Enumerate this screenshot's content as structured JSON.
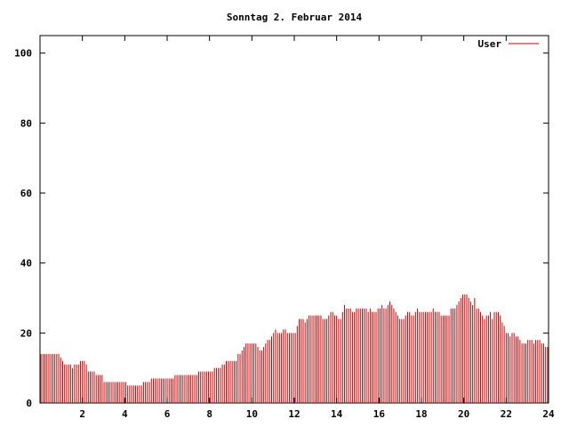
{
  "chart_data": {
    "type": "bar",
    "title": "Sonntag 2. Februar 2014",
    "xlabel": "",
    "ylabel": "",
    "xlim": [
      0,
      24
    ],
    "ylim": [
      0,
      105
    ],
    "xticks": [
      "2",
      "4",
      "6",
      "8",
      "10",
      "12",
      "14",
      "16",
      "18",
      "20",
      "22",
      "24"
    ],
    "yticks": [
      "0",
      "20",
      "40",
      "60",
      "80",
      "100"
    ],
    "grid": false,
    "legend_position": "top-right",
    "series": [
      {
        "name": "User",
        "color": "#cc0000",
        "interval_hours": 0.0833,
        "values": [
          14,
          14,
          14,
          14,
          14,
          14,
          14,
          14,
          14,
          14,
          13,
          12,
          11,
          11,
          11,
          11,
          10,
          11,
          11,
          11,
          12,
          12,
          12,
          11,
          9,
          9,
          9,
          9,
          8,
          8,
          8,
          8,
          6,
          6,
          6,
          6,
          6,
          6,
          6,
          6,
          6,
          6,
          6,
          6,
          5,
          5,
          5,
          5,
          5,
          5,
          5,
          5,
          6,
          6,
          6,
          6,
          7,
          7,
          7,
          7,
          7,
          7,
          7,
          7,
          7,
          7,
          7,
          7,
          8,
          8,
          8,
          8,
          8,
          8,
          8,
          8,
          8,
          8,
          8,
          8,
          9,
          9,
          9,
          9,
          9,
          9,
          9,
          9,
          10,
          10,
          10,
          10,
          11,
          11,
          12,
          12,
          12,
          12,
          12,
          12,
          14,
          14,
          15,
          16,
          17,
          17,
          17,
          17,
          17,
          17,
          16,
          15,
          15,
          16,
          17,
          18,
          18,
          19,
          20,
          21,
          20,
          20,
          20,
          21,
          21,
          20,
          20,
          20,
          20,
          20,
          22,
          24,
          24,
          24,
          23,
          24,
          25,
          25,
          25,
          25,
          25,
          25,
          25,
          24,
          24,
          24,
          25,
          26,
          26,
          25,
          25,
          24,
          24,
          26,
          28,
          27,
          27,
          27,
          26,
          26,
          27,
          27,
          27,
          27,
          27,
          27,
          26,
          27,
          26,
          26,
          26,
          27,
          27,
          28,
          27,
          27,
          28,
          29,
          28,
          27,
          26,
          25,
          24,
          24,
          24,
          25,
          26,
          26,
          25,
          25,
          26,
          27,
          26,
          26,
          26,
          26,
          26,
          26,
          26,
          27,
          26,
          26,
          26,
          25,
          25,
          25,
          25,
          25,
          27,
          27,
          27,
          28,
          29,
          30,
          31,
          31,
          31,
          30,
          29,
          28,
          30,
          27,
          27,
          26,
          25,
          24,
          25,
          25,
          26,
          24,
          26,
          26,
          26,
          25,
          23,
          22,
          20,
          20,
          19,
          20,
          20,
          19,
          19,
          18,
          17,
          17,
          17,
          18,
          18,
          18,
          17,
          18,
          18,
          18,
          17,
          17,
          16,
          16
        ]
      }
    ]
  }
}
